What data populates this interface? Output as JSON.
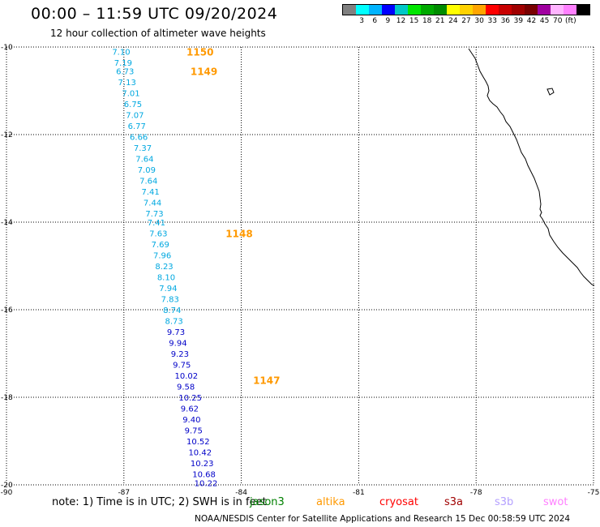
{
  "header": {
    "title": "00:00 – 11:59 UTC 09/20/2024",
    "subtitle": "12 hour collection of altimeter wave heights"
  },
  "legend": {
    "unit": "(ft)",
    "colors": [
      "#808080",
      "#00ffff",
      "#00b4ff",
      "#0000ff",
      "#00c8c8",
      "#00e600",
      "#00aa00",
      "#008c00",
      "#ffff00",
      "#ffd200",
      "#ffa500",
      "#ff0000",
      "#c80000",
      "#a00000",
      "#780000",
      "#a000a0",
      "#ffb4ff",
      "#ff80ff",
      "#000000"
    ],
    "labels": [
      "3",
      "6",
      "9",
      "12",
      "15",
      "18",
      "21",
      "24",
      "27",
      "30",
      "33",
      "36",
      "39",
      "42",
      "45",
      "70"
    ]
  },
  "map": {
    "lon_range": [
      -90,
      -75
    ],
    "lat_range": [
      -20,
      -10
    ],
    "lon_ticks": [
      "-90",
      "-87",
      "-84",
      "-81",
      "-78",
      "-75"
    ],
    "lat_ticks": [
      "-10",
      "-12",
      "-14",
      "-16",
      "-18",
      "-20"
    ],
    "grid": true
  },
  "tracks": [
    {
      "name": "1150",
      "lon": -85.4,
      "lat": -10.1,
      "color": "#ff9900"
    },
    {
      "name": "1149",
      "lon": -85.3,
      "lat": -10.55,
      "color": "#ff9900"
    },
    {
      "name": "1148",
      "lon": -84.4,
      "lat": -14.25,
      "color": "#ff9900"
    },
    {
      "name": "1147",
      "lon": -83.7,
      "lat": -17.6,
      "color": "#ff9900"
    }
  ],
  "wave_heights": [
    {
      "value": "7.10",
      "lon": -87.3,
      "lat": -10.1
    },
    {
      "value": "7.19",
      "lon": -87.25,
      "lat": -10.35
    },
    {
      "value": "6.73",
      "lon": -87.2,
      "lat": -10.55
    },
    {
      "value": "7.13",
      "lon": -87.15,
      "lat": -10.8
    },
    {
      "value": "7.01",
      "lon": -87.05,
      "lat": -11.05
    },
    {
      "value": "6.75",
      "lon": -87.0,
      "lat": -11.3
    },
    {
      "value": "7.07",
      "lon": -86.95,
      "lat": -11.55
    },
    {
      "value": "6.77",
      "lon": -86.9,
      "lat": -11.8
    },
    {
      "value": "6.66",
      "lon": -86.85,
      "lat": -12.05
    },
    {
      "value": "7.37",
      "lon": -86.75,
      "lat": -12.3
    },
    {
      "value": "7.64",
      "lon": -86.7,
      "lat": -12.55
    },
    {
      "value": "7.09",
      "lon": -86.65,
      "lat": -12.8
    },
    {
      "value": "7.64",
      "lon": -86.6,
      "lat": -13.05
    },
    {
      "value": "7.41",
      "lon": -86.55,
      "lat": -13.3
    },
    {
      "value": "7.44",
      "lon": -86.5,
      "lat": -13.55
    },
    {
      "value": "7.73",
      "lon": -86.45,
      "lat": -13.8
    },
    {
      "value": "7.41",
      "lon": -86.4,
      "lat": -14.0
    },
    {
      "value": "7.63",
      "lon": -86.35,
      "lat": -14.25
    },
    {
      "value": "7.69",
      "lon": -86.3,
      "lat": -14.5
    },
    {
      "value": "7.96",
      "lon": -86.25,
      "lat": -14.75
    },
    {
      "value": "8.23",
      "lon": -86.2,
      "lat": -15.0
    },
    {
      "value": "8.10",
      "lon": -86.15,
      "lat": -15.25
    },
    {
      "value": "7.94",
      "lon": -86.1,
      "lat": -15.5
    },
    {
      "value": "7.83",
      "lon": -86.05,
      "lat": -15.75
    },
    {
      "value": "8.74",
      "lon": -86.0,
      "lat": -16.0
    },
    {
      "value": "8.73",
      "lon": -85.95,
      "lat": -16.25
    },
    {
      "value": "9.73",
      "lon": -85.9,
      "lat": -16.5
    },
    {
      "value": "9.94",
      "lon": -85.85,
      "lat": -16.75
    },
    {
      "value": "9.23",
      "lon": -85.8,
      "lat": -17.0
    },
    {
      "value": "9.75",
      "lon": -85.75,
      "lat": -17.25
    },
    {
      "value": "10.02",
      "lon": -85.7,
      "lat": -17.5
    },
    {
      "value": "9.58",
      "lon": -85.65,
      "lat": -17.75
    },
    {
      "value": "10.25",
      "lon": -85.6,
      "lat": -18.0
    },
    {
      "value": "9.62",
      "lon": -85.55,
      "lat": -18.25
    },
    {
      "value": "9.40",
      "lon": -85.5,
      "lat": -18.5
    },
    {
      "value": "9.75",
      "lon": -85.45,
      "lat": -18.75
    },
    {
      "value": "10.52",
      "lon": -85.4,
      "lat": -19.0
    },
    {
      "value": "10.42",
      "lon": -85.35,
      "lat": -19.25
    },
    {
      "value": "10.23",
      "lon": -85.3,
      "lat": -19.5
    },
    {
      "value": "10.68",
      "lon": -85.25,
      "lat": -19.75
    },
    {
      "value": "10.22",
      "lon": -85.2,
      "lat": -19.95
    }
  ],
  "footer": {
    "note": "note: 1) Time is in UTC; 2) SWH is in feet",
    "satellites": [
      {
        "name": "jason3",
        "color": "#008000"
      },
      {
        "name": "altika",
        "color": "#ff9900"
      },
      {
        "name": "cryosat",
        "color": "#ff0000"
      },
      {
        "name": "s3a",
        "color": "#a00000"
      },
      {
        "name": "s3b",
        "color": "#b4a0ff"
      },
      {
        "name": "swot",
        "color": "#ff80ff"
      }
    ],
    "credit": "NOAA/NESDIS Center for Satellite Applications and Research    15 Dec 00:58:59 UTC 2024"
  }
}
